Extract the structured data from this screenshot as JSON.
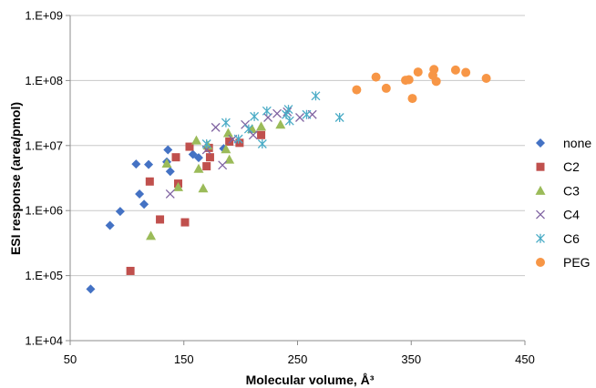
{
  "chart_data": {
    "type": "scatter",
    "xlabel": "Molecular volume, Å³",
    "ylabel": "ESI response (area/pmol)",
    "xlim": [
      50,
      450
    ],
    "ylim_log10": [
      4,
      9
    ],
    "x_scale": "linear",
    "y_scale": "log",
    "x_ticks": [
      50,
      150,
      250,
      350,
      450
    ],
    "x_tick_labels": [
      "50",
      "150",
      "250",
      "350",
      "450"
    ],
    "y_ticks": [
      10000,
      100000,
      1000000,
      10000000,
      100000000,
      1000000000
    ],
    "y_tick_labels": [
      "1.E+04",
      "1.E+05",
      "1.E+06",
      "1.E+07",
      "1.E+08",
      "1.E+09"
    ],
    "grid": "horizontal major",
    "legend_position": "right",
    "series": [
      {
        "name": "none",
        "marker": "diamond",
        "color": "#4472c4",
        "points": [
          [
            68,
            62000
          ],
          [
            85,
            590000
          ],
          [
            94,
            970000
          ],
          [
            108,
            5200000
          ],
          [
            111,
            1800000
          ],
          [
            115,
            1250000
          ],
          [
            119,
            5100000
          ],
          [
            135,
            5600000
          ],
          [
            136,
            8600000
          ],
          [
            138,
            4000000
          ],
          [
            158,
            7300000
          ],
          [
            163,
            6500000
          ],
          [
            185,
            9000000
          ]
        ]
      },
      {
        "name": "C2",
        "marker": "square",
        "color": "#c0504d",
        "points": [
          [
            103,
            118000
          ],
          [
            120,
            2800000
          ],
          [
            129,
            730000
          ],
          [
            143,
            6600000
          ],
          [
            145,
            2600000
          ],
          [
            151,
            660000
          ],
          [
            155,
            9600000
          ],
          [
            170,
            4800000
          ],
          [
            172,
            9200000
          ],
          [
            173,
            6600000
          ],
          [
            190,
            11500000
          ],
          [
            199,
            11000000
          ],
          [
            218,
            14500000
          ]
        ]
      },
      {
        "name": "C3",
        "marker": "triangle",
        "color": "#9bbb59",
        "points": [
          [
            121,
            410000
          ],
          [
            135,
            5300000
          ],
          [
            145,
            2300000
          ],
          [
            161,
            12000000
          ],
          [
            163,
            4400000
          ],
          [
            167,
            2200000
          ],
          [
            171,
            10000000
          ],
          [
            187,
            8800000
          ],
          [
            189,
            15600000
          ],
          [
            190,
            6100000
          ],
          [
            210,
            18000000
          ],
          [
            218,
            19600000
          ],
          [
            235,
            21000000
          ]
        ]
      },
      {
        "name": "C4",
        "marker": "x",
        "color": "#8064a2",
        "points": [
          [
            138,
            1800000
          ],
          [
            170,
            8600000
          ],
          [
            178,
            19000000
          ],
          [
            184,
            5000000
          ],
          [
            193,
            12500000
          ],
          [
            204,
            21000000
          ],
          [
            211,
            14500000
          ],
          [
            224,
            27000000
          ],
          [
            232,
            31000000
          ],
          [
            241,
            33000000
          ],
          [
            252,
            27000000
          ],
          [
            263,
            30000000
          ]
        ]
      },
      {
        "name": "C6",
        "marker": "star",
        "color": "#4bacc6",
        "points": [
          [
            170,
            10600000
          ],
          [
            187,
            22500000
          ],
          [
            198,
            12600000
          ],
          [
            207,
            18000000
          ],
          [
            212,
            28000000
          ],
          [
            219,
            10600000
          ],
          [
            223,
            34000000
          ],
          [
            240,
            30000000
          ],
          [
            242,
            36000000
          ],
          [
            243,
            24000000
          ],
          [
            258,
            30000000
          ],
          [
            266,
            58000000
          ],
          [
            287,
            27000000
          ]
        ]
      },
      {
        "name": "PEG",
        "marker": "circle",
        "color": "#f79646",
        "points": [
          [
            302,
            72000000
          ],
          [
            319,
            113000000
          ],
          [
            328,
            76000000
          ],
          [
            345,
            101000000
          ],
          [
            348,
            103000000
          ],
          [
            351,
            53000000
          ],
          [
            356,
            135000000
          ],
          [
            369,
            120000000
          ],
          [
            370,
            148000000
          ],
          [
            372,
            97000000
          ],
          [
            389,
            145000000
          ],
          [
            398,
            133000000
          ],
          [
            416,
            108000000
          ]
        ]
      }
    ]
  }
}
